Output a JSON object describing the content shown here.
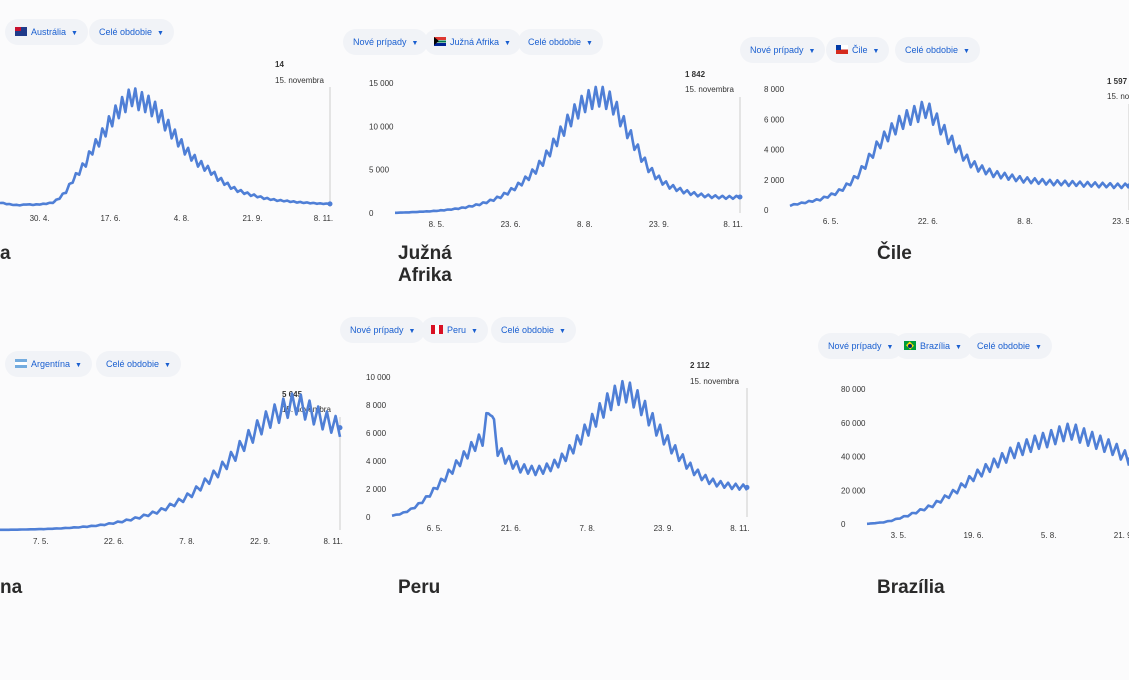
{
  "controls": {
    "metric_label": "Nové prípady",
    "period_label": "Celé obdobie"
  },
  "colors": {
    "line": "#4f7fd6",
    "accent": "#1a5fd0"
  },
  "tooltip_date": "15. novembra",
  "panels": {
    "australia": {
      "title": "a",
      "country_label": "Austrália",
      "flag": "australia-flag-icon",
      "tooltip_value": "14"
    },
    "south_africa": {
      "title": "Južná Afrika",
      "country_label": "Južná Afrika",
      "flag": "south-africa-flag-icon",
      "tooltip_value": "1 842"
    },
    "chile": {
      "title": "Čile",
      "country_label": "Čile",
      "flag": "chile-flag-icon",
      "tooltip_value": "1 597"
    },
    "argentina": {
      "title": "na",
      "country_label": "Argentína",
      "flag": "argentina-flag-icon",
      "tooltip_value": "5 645"
    },
    "peru": {
      "title": "Peru",
      "country_label": "Peru",
      "flag": "peru-flag-icon",
      "tooltip_value": "2 112"
    },
    "brazil": {
      "title": "Brazília",
      "country_label": "Brazília",
      "flag": "brazil-flag-icon",
      "tooltip_value": ""
    }
  },
  "chart_data": [
    {
      "id": "australia",
      "type": "line",
      "series": [
        {
          "values": [
            20,
            14,
            10,
            8,
            12,
            10,
            12,
            15,
            20,
            40,
            70,
            120,
            160,
            200,
            260,
            300,
            350,
            400,
            440,
            470,
            500,
            480,
            470,
            450,
            420,
            380,
            340,
            300,
            260,
            230,
            200,
            180,
            160,
            130,
            110,
            90,
            75,
            65,
            55,
            48,
            40,
            35,
            30,
            28,
            25,
            22,
            20,
            18,
            16,
            15,
            14
          ]
        }
      ],
      "x_ticks": [
        "30. 4.",
        "17. 6.",
        "4. 8.",
        "21. 9.",
        "8. 11."
      ],
      "y_ticks": [],
      "ylim": [
        0,
        550
      ]
    },
    {
      "id": "south_africa",
      "type": "line",
      "series": [
        {
          "values": [
            20,
            50,
            80,
            120,
            160,
            200,
            260,
            330,
            420,
            520,
            650,
            820,
            1000,
            1250,
            1550,
            1900,
            2350,
            2900,
            3500,
            4200,
            5000,
            6000,
            7200,
            8500,
            9800,
            11000,
            12000,
            12800,
            13200,
            13500,
            13200,
            12500,
            11000,
            9500,
            8000,
            6500,
            5200,
            4300,
            3600,
            3100,
            2800,
            2500,
            2300,
            2100,
            2000,
            1900,
            1850,
            1800,
            1800,
            1842
          ]
        }
      ],
      "x_ticks": [
        "8. 5.",
        "23. 6.",
        "8. 8.",
        "23. 9.",
        "8. 11."
      ],
      "y_ticks": [
        "15 000",
        "10 000",
        "5 000",
        "0"
      ],
      "ylim": [
        0,
        15000
      ]
    },
    {
      "id": "chile",
      "type": "line",
      "series": [
        {
          "values": [
            300,
            400,
            500,
            600,
            700,
            900,
            1100,
            1400,
            1800,
            2300,
            3000,
            3800,
            4500,
            5000,
            5500,
            5900,
            6200,
            6400,
            6700,
            6200,
            5500,
            4800,
            4200,
            3600,
            3100,
            2800,
            2600,
            2400,
            2300,
            2200,
            2100,
            2000,
            1950,
            1900,
            1850,
            1800,
            1800,
            1750,
            1750,
            1700,
            1700,
            1650,
            1650,
            1600,
            1600,
            1597
          ]
        }
      ],
      "x_ticks": [
        "6. 5.",
        "22. 6.",
        "8. 8.",
        "23. 9."
      ],
      "y_ticks": [
        "8 000",
        "6 000",
        "4 000",
        "2 000",
        "0"
      ],
      "ylim": [
        0,
        8000
      ]
    },
    {
      "id": "argentina",
      "type": "line",
      "series": [
        {
          "values": [
            10,
            15,
            20,
            30,
            40,
            50,
            70,
            90,
            120,
            150,
            190,
            240,
            300,
            380,
            470,
            580,
            700,
            850,
            1000,
            1200,
            1450,
            1700,
            2000,
            2400,
            2800,
            3200,
            3700,
            4200,
            4800,
            5300,
            5800,
            6200,
            6500,
            6800,
            7000,
            6700,
            6400,
            6100,
            5900,
            5645
          ]
        }
      ],
      "x_ticks": [
        "7. 5.",
        "22. 6.",
        "7. 8.",
        "22. 9.",
        "8. 11."
      ],
      "y_ticks": [],
      "ylim": [
        0,
        8000
      ]
    },
    {
      "id": "peru",
      "type": "line",
      "series": [
        {
          "values": [
            100,
            200,
            400,
            700,
            1100,
            1600,
            2200,
            2800,
            3400,
            4000,
            4600,
            5200,
            5600,
            8000,
            4800,
            4200,
            3800,
            3500,
            3400,
            3300,
            3400,
            3600,
            3900,
            4400,
            5000,
            5700,
            6400,
            7100,
            7800,
            8400,
            8800,
            9000,
            8600,
            8000,
            7200,
            6400,
            5700,
            5000,
            4400,
            3800,
            3300,
            2900,
            2600,
            2400,
            2300,
            2200,
            2150,
            2112
          ]
        }
      ],
      "x_ticks": [
        "6. 5.",
        "21. 6.",
        "7. 8.",
        "23. 9.",
        "8. 11."
      ],
      "y_ticks": [
        "10 000",
        "8 000",
        "6 000",
        "4 000",
        "2 000",
        "0"
      ],
      "ylim": [
        0,
        10000
      ]
    },
    {
      "id": "brazil",
      "type": "line",
      "series": [
        {
          "values": [
            100,
            500,
            1000,
            2000,
            3500,
            5000,
            7000,
            9000,
            11000,
            14000,
            17000,
            20000,
            24000,
            28000,
            31000,
            34000,
            37000,
            40000,
            43000,
            45000,
            47000,
            49000,
            50000,
            52000,
            54000,
            55000,
            53000,
            51000,
            49000,
            47000,
            45000,
            42000,
            38000
          ]
        }
      ],
      "x_ticks": [
        "3. 5.",
        "19. 6.",
        "5. 8.",
        "21. 9."
      ],
      "y_ticks": [
        "80 000",
        "60 000",
        "40 000",
        "20 000",
        "0"
      ],
      "ylim": [
        0,
        80000
      ]
    }
  ]
}
